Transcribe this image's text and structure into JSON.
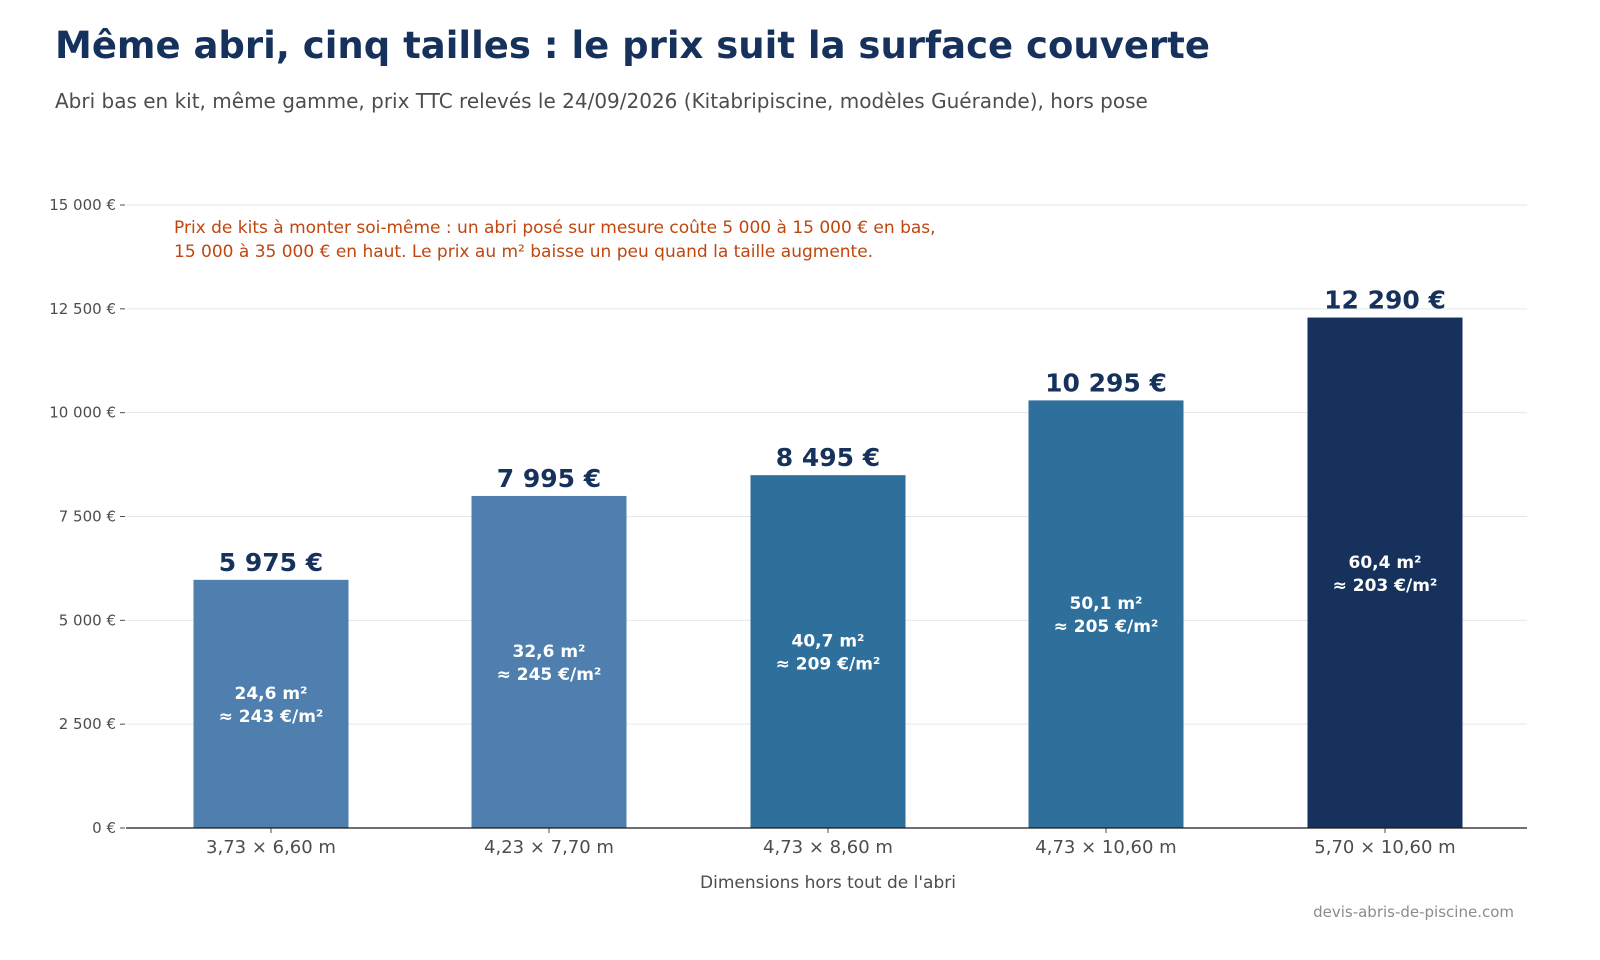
{
  "header": {
    "title": "Même abri, cinq tailles : le prix suit la surface couverte",
    "subtitle": "Abri bas en kit, même gamme, prix TTC relevés le 24/09/2026 (Kitabripiscine, modèles Guérande), hors pose"
  },
  "footer": {
    "source": "devis-abris-de-piscine.com"
  },
  "chart_data": {
    "type": "bar",
    "categories": [
      "3,73 × 6,60 m",
      "4,23 × 7,70 m",
      "4,73 × 8,60 m",
      "4,73 × 10,60 m",
      "5,70 × 10,60 m"
    ],
    "values": [
      5975,
      7995,
      8495,
      10295,
      12290
    ],
    "value_labels": [
      "5 975 €",
      "7 995 €",
      "8 495 €",
      "10 295 €",
      "12 290 €"
    ],
    "inner_labels": [
      [
        "24,6 m²",
        "≈ 243 €/m²"
      ],
      [
        "32,6 m²",
        "≈ 245 €/m²"
      ],
      [
        "40,7 m²",
        "≈ 209 €/m²"
      ],
      [
        "50,1 m²",
        "≈ 205 €/m²"
      ],
      [
        "60,4 m²",
        "≈ 203 €/m²"
      ]
    ],
    "bar_colors": [
      "#4e7fae",
      "#4e7fae",
      "#2e6f9c",
      "#2e6f9c",
      "#16325c"
    ],
    "xlabel": "Dimensions hors tout de l'abri",
    "ylabel": "",
    "ylim": [
      0,
      15000
    ],
    "yticks": [
      0,
      2500,
      5000,
      7500,
      10000,
      12500,
      15000
    ],
    "ytick_labels": [
      "0 €",
      "2 500 €",
      "5 000 €",
      "7 500 €",
      "10 000 €",
      "12 500 €",
      "15 000 €"
    ],
    "annotation": [
      "Prix de kits à monter soi-même : un abri posé sur mesure coûte 5 000 à 15 000 € en bas,",
      "15 000 à 35 000 € en haut. Le prix au m² baisse un peu quand la taille augmente."
    ],
    "annotation_color": "#c0460e",
    "grid": true,
    "legend": "none"
  }
}
